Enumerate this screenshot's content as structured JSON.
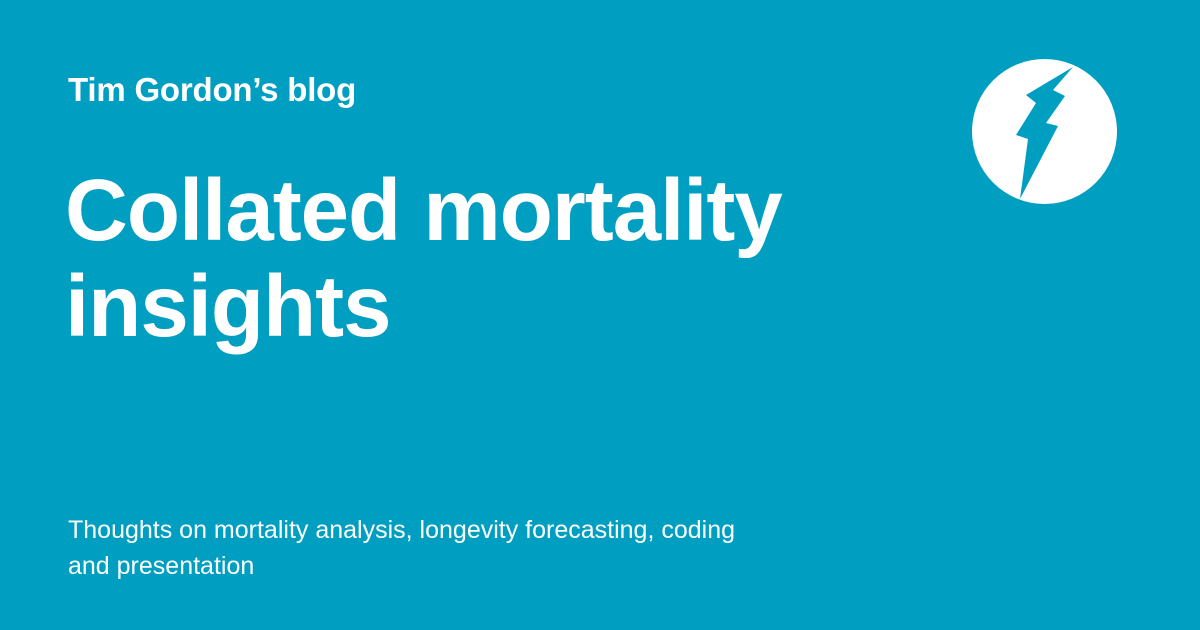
{
  "blog": {
    "name": "Tim Gordon’s blog"
  },
  "post": {
    "title_line1": "Collated mortality",
    "title_line2": "insights",
    "tagline_line1": "Thoughts on mortality analysis, longevity forecasting, coding",
    "tagline_line2": "and presentation"
  },
  "logo": {
    "icon": "lightning-bolt-icon"
  },
  "colors": {
    "background": "#009fc2",
    "text": "#ffffff",
    "logo_bolt": "#009fc2"
  }
}
